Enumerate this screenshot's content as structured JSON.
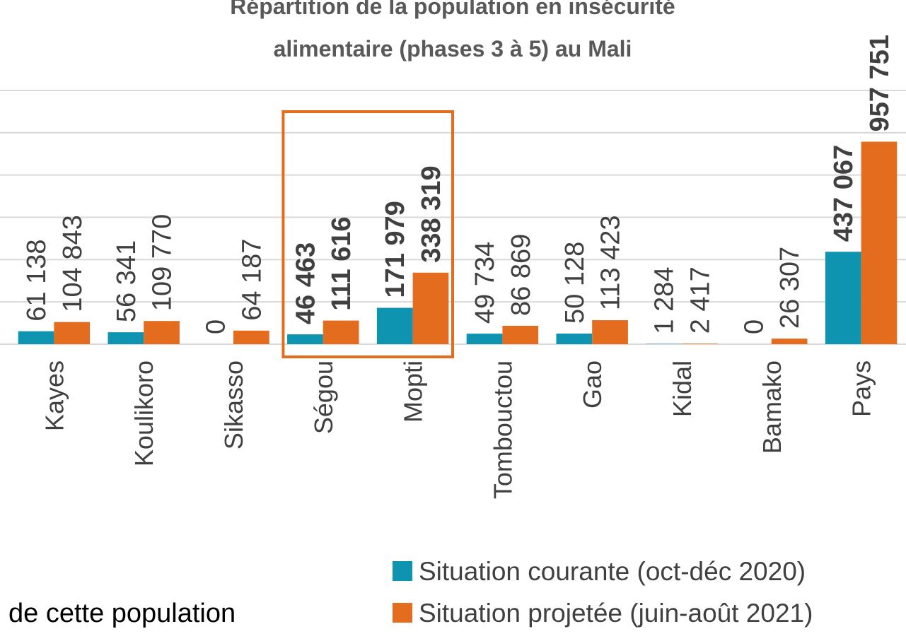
{
  "chart_data": {
    "type": "bar",
    "title": [
      "Répartition de la population en insécurité",
      "alimentaire (phases 3 à 5) au Mali"
    ],
    "categories": [
      "Kayes",
      "Koulikoro",
      "Sikasso",
      "Ségou",
      "Mopti",
      "Tombouctou",
      "Gao",
      "Kidal",
      "Bamako",
      "Pays"
    ],
    "series": [
      {
        "name": "Situation courante (oct-déc 2020)",
        "color": "#0e94b0",
        "values": [
          61138,
          56341,
          0,
          46463,
          171979,
          49734,
          50128,
          1284,
          0,
          437067
        ],
        "value_labels": [
          "61 138",
          "56 341",
          "0",
          "46 463",
          "171 979",
          "49 734",
          "50 128",
          "1 284",
          "0",
          "437 067"
        ]
      },
      {
        "name": "Situation projetée (juin-août 2021)",
        "color": "#e36c1f",
        "values": [
          104843,
          109770,
          64187,
          111616,
          338319,
          86869,
          113423,
          2417,
          26307,
          957751
        ],
        "value_labels": [
          "104 843",
          "109 770",
          "64 187",
          "111 616",
          "338 319",
          "86 869",
          "113 423",
          "2 417",
          "26 307",
          "957 751"
        ]
      }
    ],
    "ylim": [
      0,
      1200000
    ],
    "yticks": [
      0,
      200000,
      400000,
      600000,
      800000,
      1000000,
      1200000
    ],
    "grid": true,
    "legend": "bottom-right",
    "emphasis": {
      "bold": [
        "Ségou",
        "Mopti",
        "Pays"
      ],
      "box": [
        "Ségou",
        "Mopti"
      ],
      "box_color": "#e36c1f"
    },
    "annotation": "de cette population"
  }
}
